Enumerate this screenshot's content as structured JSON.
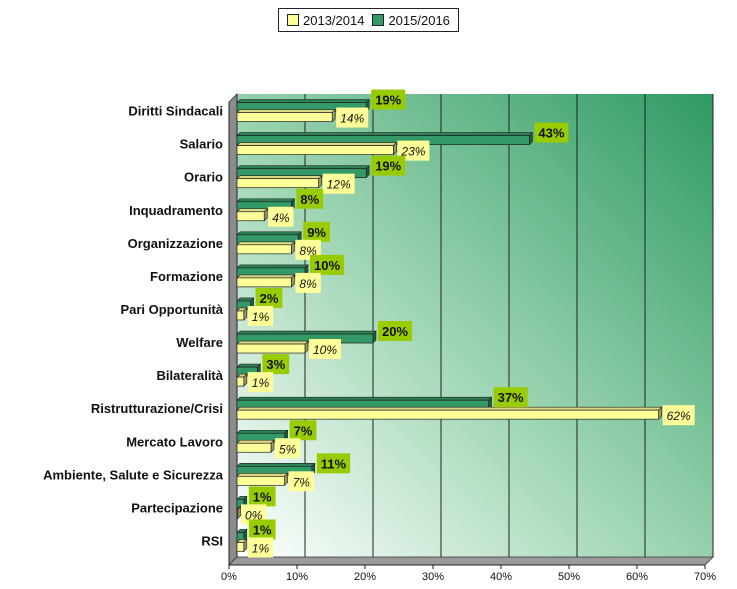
{
  "chart_data": {
    "type": "bar",
    "orientation": "horizontal",
    "categories": [
      "Diritti Sindacali",
      "Salario",
      "Orario",
      "Inquadramento",
      "Organizzazione",
      "Formazione",
      "Pari Opportunità",
      "Welfare",
      "Bilateralità",
      "Ristrutturazione/Crisi",
      "Mercato Lavoro",
      "Ambiente, Salute e Sicurezza",
      "Partecipazione",
      "RSI"
    ],
    "series": [
      {
        "name": "2013/2014",
        "color": "#ffff99",
        "values": [
          14,
          23,
          12,
          4,
          8,
          8,
          1,
          10,
          1,
          62,
          5,
          7,
          0,
          1
        ],
        "labels": [
          "14%",
          "23%",
          "12%",
          "4%",
          "8%",
          "8%",
          "1%",
          "10%",
          "1%",
          "62%",
          "5%",
          "7%",
          "0%",
          "1%"
        ]
      },
      {
        "name": "2015/2016",
        "color": "#339966",
        "values": [
          19,
          43,
          19,
          8,
          9,
          10,
          2,
          20,
          3,
          37,
          7,
          11,
          1,
          1
        ],
        "labels": [
          "19%",
          "43%",
          "19%",
          "8%",
          "9%",
          "10%",
          "2%",
          "20%",
          "3%",
          "37%",
          "7%",
          "11%",
          "1%",
          "1%"
        ]
      }
    ],
    "xlim": [
      0,
      70
    ],
    "xticks": [
      0,
      10,
      20,
      30,
      40,
      50,
      60,
      70
    ],
    "xtick_labels": [
      "0%",
      "10%",
      "20%",
      "30%",
      "40%",
      "50%",
      "60%",
      "70%"
    ],
    "grid": true,
    "legend_position": "top"
  }
}
